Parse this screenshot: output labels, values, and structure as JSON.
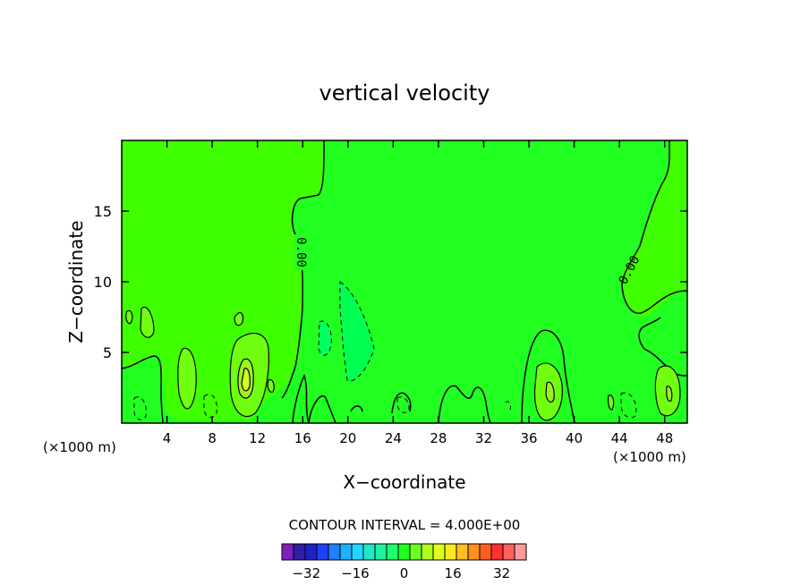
{
  "chart_data": {
    "type": "contour",
    "title": "vertical velocity",
    "xlabel": "X−coordinate",
    "ylabel": "Z−coordinate",
    "x_units": "(×1000 m)",
    "y_units": "(×1000 m)",
    "xlim": [
      0,
      50
    ],
    "ylim": [
      0,
      20
    ],
    "x_ticks": [
      4,
      8,
      12,
      16,
      20,
      24,
      28,
      32,
      36,
      40,
      44,
      48
    ],
    "x_tick_labels": [
      "4",
      "8",
      "12",
      "16",
      "20",
      "24",
      "28",
      "32",
      "36",
      "40",
      "44",
      "48"
    ],
    "y_ticks": [
      5,
      10,
      15
    ],
    "y_tick_labels": [
      "5",
      "10",
      "15"
    ],
    "contour_labels": [
      {
        "text": "0.00",
        "x": 15.8,
        "z": 12.8,
        "angle": 90
      },
      {
        "text": "0.00",
        "x": 44.4,
        "z": 10.6,
        "angle": -62
      }
    ],
    "contour_interval_text": "CONTOUR INTERVAL =  4.000E+00",
    "colorbar": {
      "levels": [
        -36,
        -32,
        -28,
        -24,
        -20,
        -16,
        -12,
        -8,
        -4,
        0,
        4,
        8,
        12,
        16,
        20,
        24,
        28,
        32,
        36
      ],
      "colors": [
        "#7f1fbf",
        "#2d1fa8",
        "#1f20c8",
        "#1f40ff",
        "#1f80ff",
        "#1fb0ff",
        "#1fd8ff",
        "#1fe8c8",
        "#1ff0a0",
        "#1fff70",
        "#1fff1f",
        "#70ff1f",
        "#b0ff1f",
        "#e0ff1f",
        "#ffe81f",
        "#ffc01f",
        "#ff901f",
        "#ff601f",
        "#ff3030",
        "#ff6060",
        "#ff9a9a"
      ],
      "tick_values": [
        -32,
        -16,
        0,
        16,
        32
      ],
      "tick_labels": [
        "−32",
        "−16",
        "0",
        "16",
        "32"
      ]
    },
    "fields": {
      "background": "#20ff20",
      "upper_left_positive": "#40ff00",
      "central_negative": "#00ff50",
      "weak_negative": "#00ff80",
      "strong_negative": "#20f0a0",
      "positive": "#70ff10",
      "strong_positive": "#a0f020",
      "core_positive": "#d0ff20"
    }
  }
}
